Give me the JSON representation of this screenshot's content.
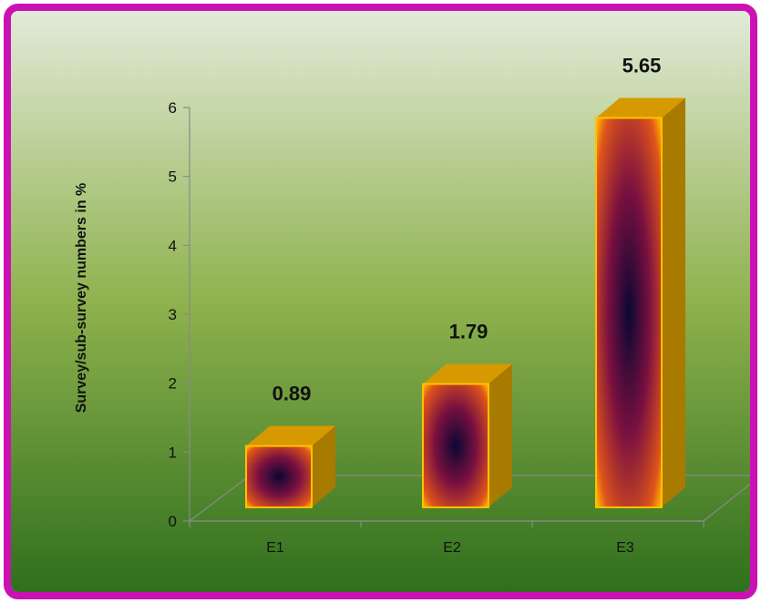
{
  "chart_data": {
    "type": "bar",
    "title": "",
    "xlabel": "",
    "ylabel": "Survey/sub-survey numbers in %",
    "categories": [
      "E1",
      "E2",
      "E3"
    ],
    "values": [
      0.89,
      1.79,
      5.65
    ],
    "data_labels": [
      "0.89",
      "1.79",
      "5.65"
    ],
    "ylim": [
      0,
      6
    ],
    "yticks": [
      "0",
      "1",
      "2",
      "3",
      "4",
      "5",
      "6"
    ],
    "grid": false,
    "legend": "none",
    "style": "3d-columns",
    "colors": {
      "frame": "#cc11b4",
      "background_top": "#e2ead8",
      "background_bottom": "#2f6f1c",
      "bar_edge": "#ffc000",
      "bar_center": "#0a0733",
      "bar_mid": "#7a1040",
      "bar_side": "#a87a00",
      "bar_top": "#d69a00",
      "axis": "#8a8a8a"
    }
  }
}
